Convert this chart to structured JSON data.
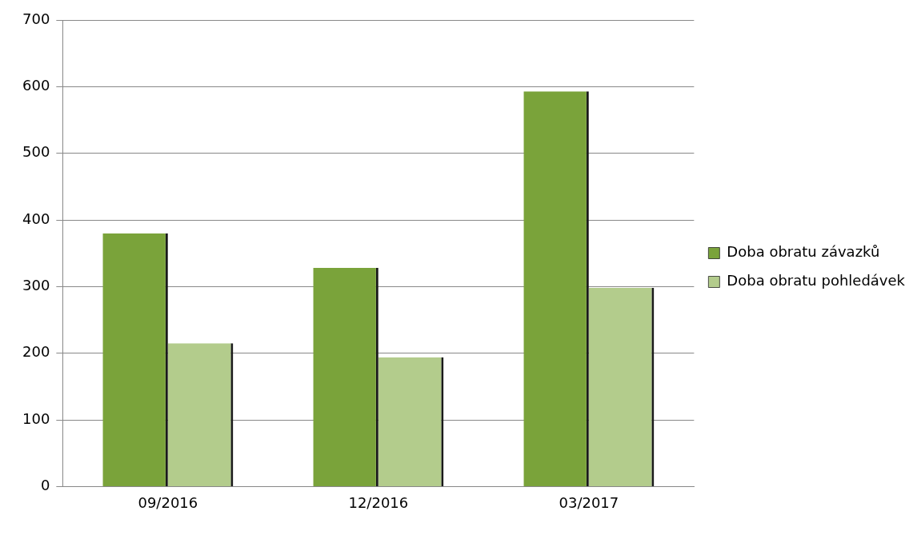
{
  "chart_data": {
    "type": "bar",
    "categories": [
      "09/2016",
      "12/2016",
      "03/2017"
    ],
    "series": [
      {
        "name": "Doba obratu závazků",
        "color": "#7aa33a",
        "values": [
          380,
          328,
          593
        ]
      },
      {
        "name": "Doba obratu pohledávek",
        "color": "#b3cc8c",
        "values": [
          215,
          194,
          298
        ]
      }
    ],
    "ylim": [
      0,
      700
    ],
    "yticks": [
      0,
      100,
      200,
      300,
      400,
      500,
      600,
      700
    ],
    "grid": "y",
    "legend": "right"
  }
}
